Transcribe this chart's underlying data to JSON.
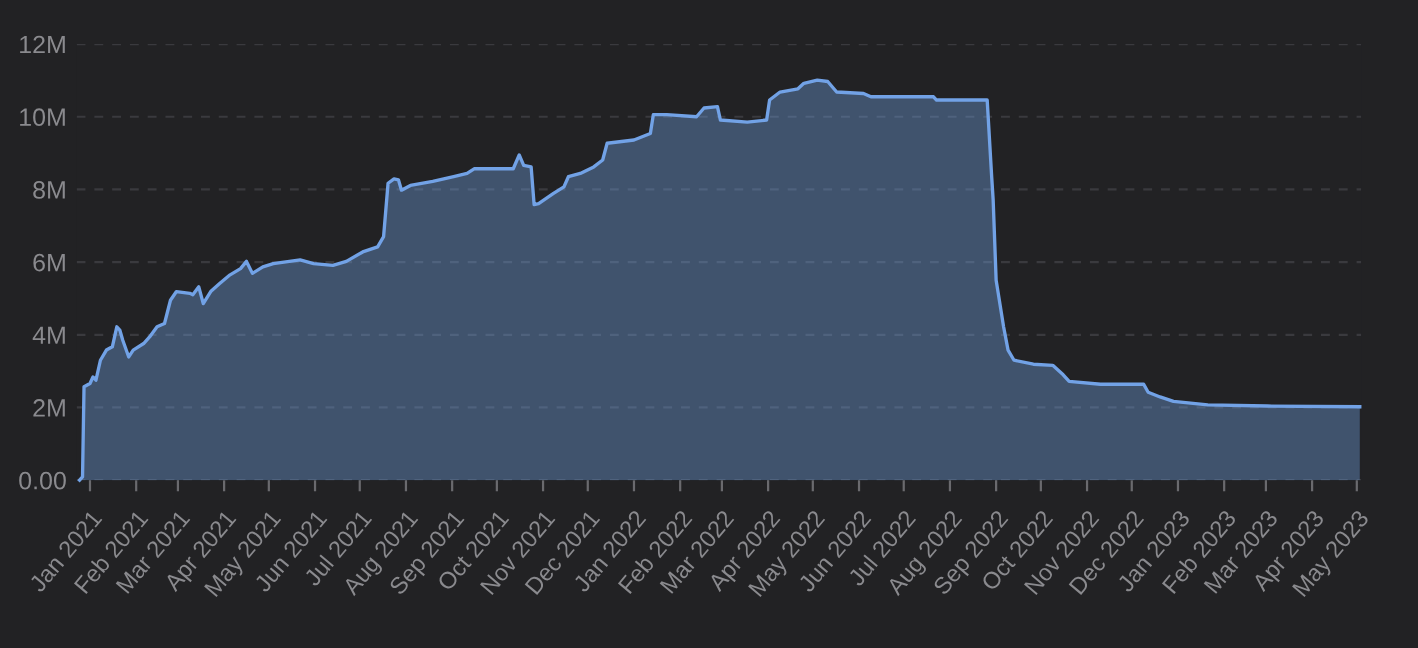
{
  "chart_data": {
    "type": "area",
    "color": "#72a2e6",
    "grid": "y",
    "line_style": "solid",
    "marker": "none",
    "x": [
      "2020-12-25",
      "2020-12-27",
      "2020-12-28",
      "2021-01-01",
      "2021-01-03",
      "2021-01-05",
      "2021-01-08",
      "2021-01-12",
      "2021-01-16",
      "2021-01-19",
      "2021-01-21",
      "2021-01-23",
      "2021-01-27",
      "2021-01-30",
      "2021-02-06",
      "2021-02-10",
      "2021-02-15",
      "2021-02-20",
      "2021-02-24",
      "2021-02-28",
      "2021-03-09",
      "2021-03-11",
      "2021-03-15",
      "2021-03-18",
      "2021-03-23",
      "2021-03-29",
      "2021-04-05",
      "2021-04-12",
      "2021-04-16",
      "2021-04-20",
      "2021-04-27",
      "2021-05-04",
      "2021-05-22",
      "2021-05-31",
      "2021-06-13",
      "2021-06-22",
      "2021-07-03",
      "2021-07-13",
      "2021-07-17",
      "2021-07-20",
      "2021-07-24",
      "2021-07-27",
      "2021-07-29",
      "2021-08-04",
      "2021-08-19",
      "2021-09-02",
      "2021-09-11",
      "2021-09-16",
      "2021-10-12",
      "2021-10-16",
      "2021-10-19",
      "2021-10-24",
      "2021-10-26",
      "2021-10-29",
      "2021-11-08",
      "2021-11-15",
      "2021-11-18",
      "2021-11-26",
      "2021-12-05",
      "2021-12-11",
      "2021-12-14",
      "2022-01-01",
      "2022-01-12",
      "2022-01-14",
      "2022-01-23",
      "2022-02-12",
      "2022-02-17",
      "2022-02-26",
      "2022-02-28",
      "2022-03-18",
      "2022-03-31",
      "2022-04-02",
      "2022-04-09",
      "2022-04-21",
      "2022-04-25",
      "2022-05-04",
      "2022-05-11",
      "2022-05-17",
      "2022-06-04",
      "2022-06-09",
      "2022-07-21",
      "2022-07-23",
      "2022-08-26",
      "2022-08-29",
      "2022-08-30",
      "2022-09-01",
      "2022-09-06",
      "2022-09-09",
      "2022-09-13",
      "2022-09-26",
      "2022-10-09",
      "2022-10-16",
      "2022-10-20",
      "2022-11-10",
      "2022-12-09",
      "2022-12-12",
      "2022-12-20",
      "2022-12-29",
      "2023-01-21",
      "2023-03-02",
      "2023-05-03"
    ],
    "values": [
      0,
      0.09,
      2.57,
      2.66,
      2.84,
      2.75,
      3.3,
      3.58,
      3.67,
      4.22,
      4.13,
      3.85,
      3.39,
      3.58,
      3.76,
      3.94,
      4.22,
      4.31,
      4.95,
      5.19,
      5.14,
      5.1,
      5.32,
      4.86,
      5.19,
      5.41,
      5.65,
      5.82,
      6.02,
      5.69,
      5.87,
      5.96,
      6.06,
      5.96,
      5.91,
      6.02,
      6.28,
      6.42,
      6.7,
      8.17,
      8.29,
      8.26,
      7.98,
      8.11,
      8.22,
      8.35,
      8.44,
      8.57,
      8.57,
      8.95,
      8.66,
      8.62,
      7.58,
      7.61,
      7.89,
      8.07,
      8.35,
      8.44,
      8.62,
      8.81,
      9.27,
      9.36,
      9.54,
      10.06,
      10.06,
      10.0,
      10.24,
      10.28,
      9.91,
      9.85,
      9.91,
      10.46,
      10.68,
      10.77,
      10.92,
      11.01,
      10.97,
      10.68,
      10.64,
      10.55,
      10.55,
      10.46,
      10.46,
      8.35,
      7.71,
      5.5,
      4.22,
      3.58,
      3.3,
      3.19,
      3.16,
      2.9,
      2.72,
      2.64,
      2.64,
      2.42,
      2.29,
      2.17,
      2.07,
      2.04,
      2.02
    ],
    "xlim": [
      "2020-12-23",
      "2023-05-04"
    ],
    "xticks": [
      {
        "value": "2021-01-01",
        "label": "Jan 2021"
      },
      {
        "value": "2021-02-01",
        "label": "Feb 2021"
      },
      {
        "value": "2021-03-01",
        "label": "Mar 2021"
      },
      {
        "value": "2021-04-01",
        "label": "Apr 2021"
      },
      {
        "value": "2021-05-01",
        "label": "May 2021"
      },
      {
        "value": "2021-06-01",
        "label": "Jun 2021"
      },
      {
        "value": "2021-07-01",
        "label": "Jul 2021"
      },
      {
        "value": "2021-08-01",
        "label": "Aug 2021"
      },
      {
        "value": "2021-09-01",
        "label": "Sep 2021"
      },
      {
        "value": "2021-10-01",
        "label": "Oct 2021"
      },
      {
        "value": "2021-11-01",
        "label": "Nov 2021"
      },
      {
        "value": "2021-12-01",
        "label": "Dec 2021"
      },
      {
        "value": "2022-01-01",
        "label": "Jan 2022"
      },
      {
        "value": "2022-02-01",
        "label": "Feb 2022"
      },
      {
        "value": "2022-03-01",
        "label": "Mar 2022"
      },
      {
        "value": "2022-04-01",
        "label": "Apr 2022"
      },
      {
        "value": "2022-05-01",
        "label": "May 2022"
      },
      {
        "value": "2022-06-01",
        "label": "Jun 2022"
      },
      {
        "value": "2022-07-01",
        "label": "Jul 2022"
      },
      {
        "value": "2022-08-01",
        "label": "Aug 2022"
      },
      {
        "value": "2022-09-01",
        "label": "Sep 2022"
      },
      {
        "value": "2022-10-01",
        "label": "Oct 2022"
      },
      {
        "value": "2022-11-01",
        "label": "Nov 2022"
      },
      {
        "value": "2022-12-01",
        "label": "Dec 2022"
      },
      {
        "value": "2023-01-01",
        "label": "Jan 2023"
      },
      {
        "value": "2023-02-01",
        "label": "Feb 2023"
      },
      {
        "value": "2023-03-01",
        "label": "Mar 2023"
      },
      {
        "value": "2023-04-01",
        "label": "Apr 2023"
      },
      {
        "value": "2023-05-01",
        "label": "May 2023"
      }
    ],
    "ylim": [
      0,
      12
    ],
    "yticks": [
      {
        "value": 0,
        "label": "0.00"
      },
      {
        "value": 2,
        "label": "2M"
      },
      {
        "value": 4,
        "label": "4M"
      },
      {
        "value": 6,
        "label": "6M"
      },
      {
        "value": 8,
        "label": "8M"
      },
      {
        "value": 10,
        "label": "10M"
      },
      {
        "value": 12,
        "label": "12M"
      }
    ]
  }
}
